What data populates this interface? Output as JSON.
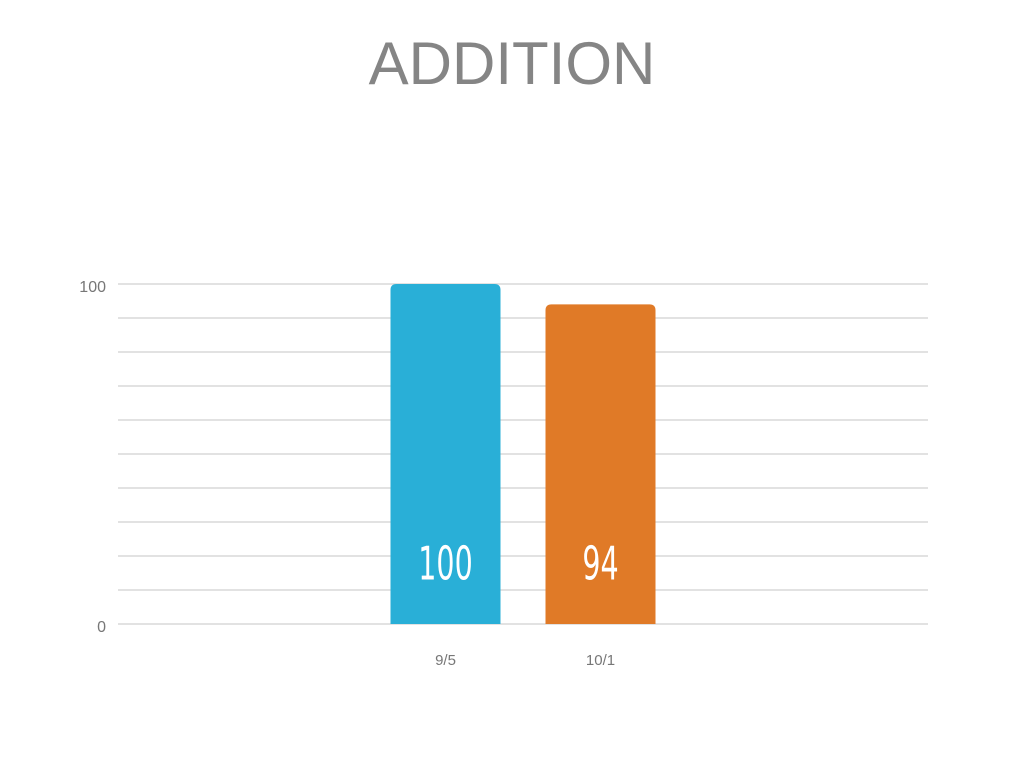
{
  "chart_data": {
    "type": "bar",
    "title": "ADDITION",
    "categories": [
      "9/5",
      "10/1"
    ],
    "values": [
      100,
      94
    ],
    "colors": [
      "#29afd7",
      "#e07a27"
    ],
    "ylim": [
      0,
      100
    ],
    "yticks": [
      0,
      {
        "value": 10,
        "label": null
      },
      {
        "value": 20,
        "label": null
      },
      {
        "value": 30,
        "label": null
      },
      {
        "value": 40,
        "label": null
      },
      {
        "value": 50,
        "label": null
      },
      {
        "value": 60,
        "label": null
      },
      {
        "value": 70,
        "label": null
      },
      {
        "value": 80,
        "label": null
      },
      {
        "value": 90,
        "label": null
      },
      100
    ],
    "grid": true
  }
}
